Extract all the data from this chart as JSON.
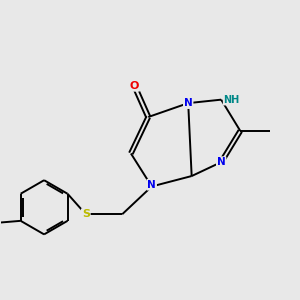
{
  "background_color": "#e8e8e8",
  "atom_colors": {
    "C": "#000000",
    "N": "#0000ee",
    "O": "#ee0000",
    "S": "#bbbb00",
    "H": "#008888"
  },
  "figsize": [
    3.0,
    3.0
  ],
  "dpi": 100,
  "bond_lw": 1.4,
  "font_size": 7.5
}
